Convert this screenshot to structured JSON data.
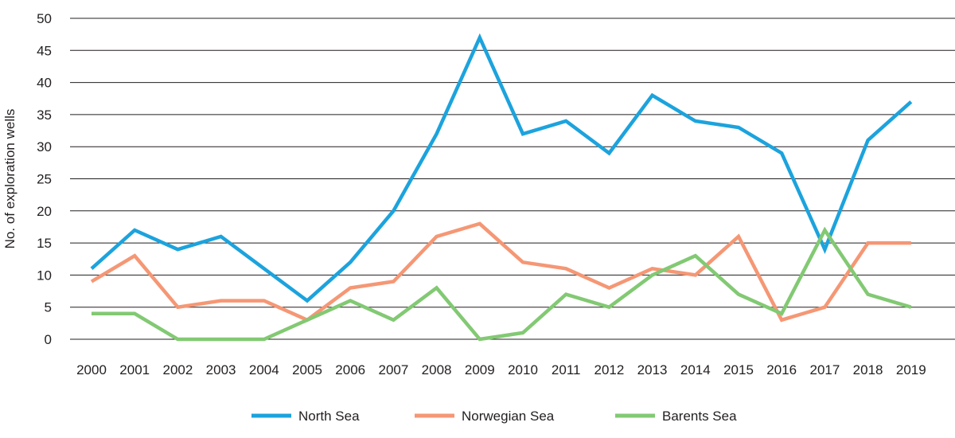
{
  "chart_data": {
    "type": "line",
    "title": "",
    "xlabel": "",
    "ylabel": "No. of exploration wells",
    "ylim": [
      0,
      50
    ],
    "yticks": [
      0,
      5,
      10,
      15,
      20,
      25,
      30,
      35,
      40,
      45,
      50
    ],
    "grid": "horizontal",
    "legend_position": "bottom",
    "categories": [
      "2000",
      "2001",
      "2002",
      "2003",
      "2004",
      "2005",
      "2006",
      "2007",
      "2008",
      "2009",
      "2010",
      "2011",
      "2012",
      "2013",
      "2014",
      "2015",
      "2016",
      "2017",
      "2018",
      "2019"
    ],
    "series": [
      {
        "name": "North Sea",
        "color": "#1ca3dd",
        "values": [
          11,
          17,
          14,
          16,
          11,
          6,
          12,
          20,
          32,
          47,
          32,
          34,
          29,
          38,
          34,
          33,
          29,
          14,
          31,
          37
        ]
      },
      {
        "name": "Norwegian Sea",
        "color": "#f59775",
        "values": [
          9,
          13,
          5,
          6,
          6,
          3,
          8,
          9,
          16,
          18,
          12,
          11,
          8,
          11,
          10,
          16,
          3,
          5,
          15,
          15
        ]
      },
      {
        "name": "Barents Sea",
        "color": "#82c973",
        "values": [
          4,
          4,
          0,
          0,
          0,
          3,
          6,
          3,
          8,
          0,
          1,
          7,
          5,
          10,
          13,
          7,
          4,
          17,
          7,
          5
        ]
      }
    ]
  }
}
